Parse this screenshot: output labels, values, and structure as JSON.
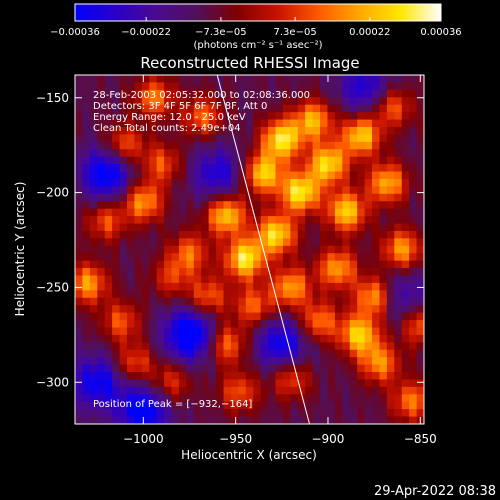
{
  "chart_data": {
    "type": "heatmap",
    "title": "Reconstructed RHESSI Image",
    "xlabel": "Heliocentric X (arcsec)",
    "ylabel": "Heliocentric Y (arcsec)",
    "xlim": [
      -1037,
      -848
    ],
    "ylim": [
      -322,
      -138
    ],
    "x_ticks": [
      -1000,
      -950,
      -900,
      -850
    ],
    "x_tick_labels": [
      "−1000",
      "−950",
      "−900",
      "−850"
    ],
    "y_ticks": [
      -150,
      -200,
      -250,
      -300
    ],
    "y_tick_labels": [
      "−150",
      "−200",
      "−250",
      "−300"
    ],
    "annotations": [
      "28-Feb-2003 02:05:32.000 to 02:08:36.000",
      "Detectors: 3F 4F 5F 6F 7F 8F, Att 0",
      "Energy Range: 12.0 - 25.0 keV",
      "Clean    Total counts: 2.49e+04",
      "Position of Peak = [−932,−164]"
    ],
    "peak": {
      "x": -932,
      "y": -164
    },
    "limb_line": {
      "x_top": -960,
      "y_top": -138,
      "x_bottom": -910,
      "y_bottom": -322
    },
    "colorbar": {
      "range": [
        -0.00036,
        0.00036
      ],
      "tick_values": [
        -0.00036,
        -0.00022,
        -7.3e-05,
        7.3e-05,
        0.00022,
        0.00036
      ],
      "tick_labels": [
        "−0.00036",
        "−0.00022",
        "−7.3e−05",
        "7.3e−05",
        "0.00022",
        "0.00036"
      ],
      "unit_label": "(photons cm⁻² s⁻¹ asec⁻²)",
      "colormap": [
        "#0000ff",
        "#2a00c8",
        "#4a0a90",
        "#50105a",
        "#800000",
        "#c81400",
        "#ff5a00",
        "#ffa800",
        "#ffe600",
        "#ffffff"
      ]
    },
    "blobs": [
      {
        "x": -994,
        "y": -150,
        "v": 0.6
      },
      {
        "x": -1010,
        "y": -175,
        "v": 0.55
      },
      {
        "x": -968,
        "y": -160,
        "v": 0.55
      },
      {
        "x": -990,
        "y": -185,
        "v": 0.5
      },
      {
        "x": -1000,
        "y": -205,
        "v": 0.7
      },
      {
        "x": -1020,
        "y": -215,
        "v": 0.5
      },
      {
        "x": -1030,
        "y": -248,
        "v": 0.7
      },
      {
        "x": -1012,
        "y": -268,
        "v": 0.5
      },
      {
        "x": -1005,
        "y": -290,
        "v": 0.5
      },
      {
        "x": -985,
        "y": -300,
        "v": 0.45
      },
      {
        "x": -955,
        "y": -212,
        "v": 0.85
      },
      {
        "x": -945,
        "y": -235,
        "v": 0.95
      },
      {
        "x": -928,
        "y": -222,
        "v": 0.9
      },
      {
        "x": -935,
        "y": -190,
        "v": 0.85
      },
      {
        "x": -925,
        "y": -172,
        "v": 0.95
      },
      {
        "x": -908,
        "y": -162,
        "v": 0.75
      },
      {
        "x": -915,
        "y": -200,
        "v": 0.95
      },
      {
        "x": -900,
        "y": -185,
        "v": 0.9
      },
      {
        "x": -890,
        "y": -210,
        "v": 0.85
      },
      {
        "x": -895,
        "y": -240,
        "v": 0.7
      },
      {
        "x": -882,
        "y": -170,
        "v": 0.85
      },
      {
        "x": -868,
        "y": -195,
        "v": 0.75
      },
      {
        "x": -860,
        "y": -230,
        "v": 0.7
      },
      {
        "x": -875,
        "y": -255,
        "v": 0.75
      },
      {
        "x": -883,
        "y": -275,
        "v": 0.85
      },
      {
        "x": -872,
        "y": -290,
        "v": 0.65
      },
      {
        "x": -855,
        "y": -310,
        "v": 0.6
      },
      {
        "x": -905,
        "y": -268,
        "v": 0.6
      },
      {
        "x": -940,
        "y": -260,
        "v": 0.55
      },
      {
        "x": -955,
        "y": -280,
        "v": 0.6
      },
      {
        "x": -965,
        "y": -255,
        "v": 0.55
      },
      {
        "x": -948,
        "y": -305,
        "v": 0.5
      },
      {
        "x": -920,
        "y": -298,
        "v": 0.5
      },
      {
        "x": -975,
        "y": -232,
        "v": 0.55
      },
      {
        "x": -865,
        "y": -155,
        "v": 0.55
      },
      {
        "x": -850,
        "y": -270,
        "v": 0.55
      },
      {
        "x": -985,
        "y": -245,
        "v": 0.4
      },
      {
        "x": -920,
        "y": -250,
        "v": 0.7
      }
    ],
    "negatives": [
      {
        "x": -1020,
        "y": -190,
        "v": 0.7
      },
      {
        "x": -975,
        "y": -275,
        "v": 0.8
      },
      {
        "x": -1000,
        "y": -315,
        "v": 0.7
      },
      {
        "x": -925,
        "y": -280,
        "v": 0.6
      },
      {
        "x": -880,
        "y": -145,
        "v": 0.5
      },
      {
        "x": -1025,
        "y": -300,
        "v": 0.6
      },
      {
        "x": -960,
        "y": -190,
        "v": 0.5
      },
      {
        "x": -860,
        "y": -255,
        "v": 0.4
      }
    ]
  },
  "footer": {
    "timestamp": "29-Apr-2022 08:38"
  }
}
